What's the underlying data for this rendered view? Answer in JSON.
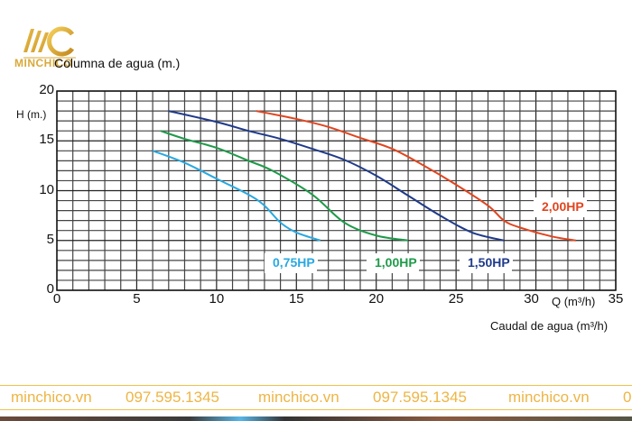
{
  "brand": {
    "logo_text": "MINCHICO",
    "logo_color": "#d9a93a"
  },
  "chart_data": {
    "type": "line",
    "title": "Columna de agua (m.)",
    "ylabel": "H (m.)",
    "xlabel": "Caudal de agua (m³/h)",
    "x_unit_label": "Q (m³/h)",
    "xlim": [
      0,
      35
    ],
    "ylim": [
      0,
      20
    ],
    "grid": true,
    "x_ticks": [
      "0",
      "5",
      "10",
      "15",
      "20",
      "25",
      "30",
      "35"
    ],
    "y_ticks": [
      "0",
      "5",
      "10",
      "15",
      "20"
    ],
    "series": [
      {
        "name": "0,75HP",
        "color": "#29a8e0",
        "points": [
          [
            6,
            14
          ],
          [
            8,
            12.8
          ],
          [
            10,
            11.2
          ],
          [
            12,
            9.6
          ],
          [
            13,
            8.5
          ],
          [
            14,
            6.8
          ],
          [
            15,
            5.8
          ],
          [
            16.5,
            5
          ]
        ]
      },
      {
        "name": "1,00HP",
        "color": "#1f9a4a",
        "points": [
          [
            6.5,
            16
          ],
          [
            8,
            15.2
          ],
          [
            10,
            14.3
          ],
          [
            12,
            13
          ],
          [
            13.5,
            12
          ],
          [
            16,
            9.6
          ],
          [
            18,
            6.8
          ],
          [
            20,
            5.5
          ],
          [
            22,
            5
          ]
        ]
      },
      {
        "name": "1,50HP",
        "color": "#1f3a8a",
        "points": [
          [
            7,
            18
          ],
          [
            10,
            16.9
          ],
          [
            12,
            16
          ],
          [
            14,
            15.2
          ],
          [
            16,
            14.2
          ],
          [
            18,
            13.1
          ],
          [
            20,
            11.5
          ],
          [
            22,
            9.5
          ],
          [
            24,
            7.5
          ],
          [
            26,
            5.8
          ],
          [
            28,
            5
          ]
        ]
      },
      {
        "name": "2,00HP",
        "color": "#e0451f",
        "points": [
          [
            12.5,
            18
          ],
          [
            15,
            17.2
          ],
          [
            17,
            16.4
          ],
          [
            19,
            15.3
          ],
          [
            21,
            14.2
          ],
          [
            23,
            12.5
          ],
          [
            25,
            10.6
          ],
          [
            27,
            8.5
          ],
          [
            28,
            7
          ],
          [
            29,
            6.3
          ],
          [
            31,
            5.4
          ],
          [
            32.5,
            5
          ]
        ]
      }
    ]
  },
  "footer": {
    "items": [
      "minchico.vn",
      "097.595.1345",
      "minchico.vn",
      "097.595.1345",
      "minchico.vn",
      "0"
    ]
  }
}
